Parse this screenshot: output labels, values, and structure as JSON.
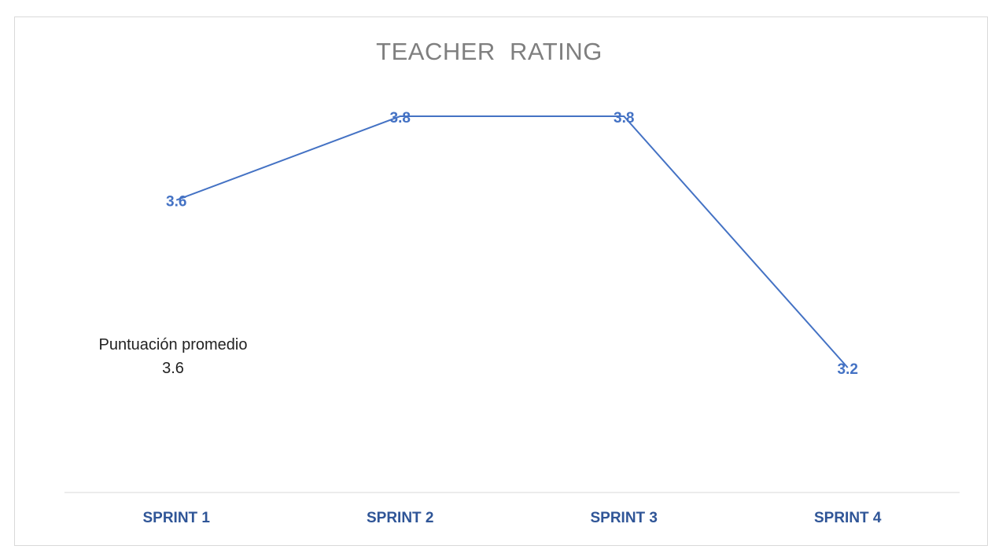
{
  "chart_data": {
    "type": "line",
    "title": "TEACHER  RATING",
    "categories": [
      "SPRINT 1",
      "SPRINT 2",
      "SPRINT 3",
      "SPRINT 4"
    ],
    "series": [
      {
        "values": [
          3.6,
          3.8,
          3.8,
          3.2
        ],
        "color": "#4472c4"
      }
    ],
    "data_labels": [
      "3.6",
      "3.8",
      "3.8",
      "3.2"
    ],
    "ylim": [
      3.0,
      3.86
    ],
    "grid": false,
    "legend": "none",
    "annotation": {
      "label": "Puntuación promedio",
      "value": "3.6"
    },
    "category_label_color": "#2f5597",
    "data_label_color": "#4472c4",
    "axis_color": "#d9d9d9"
  }
}
